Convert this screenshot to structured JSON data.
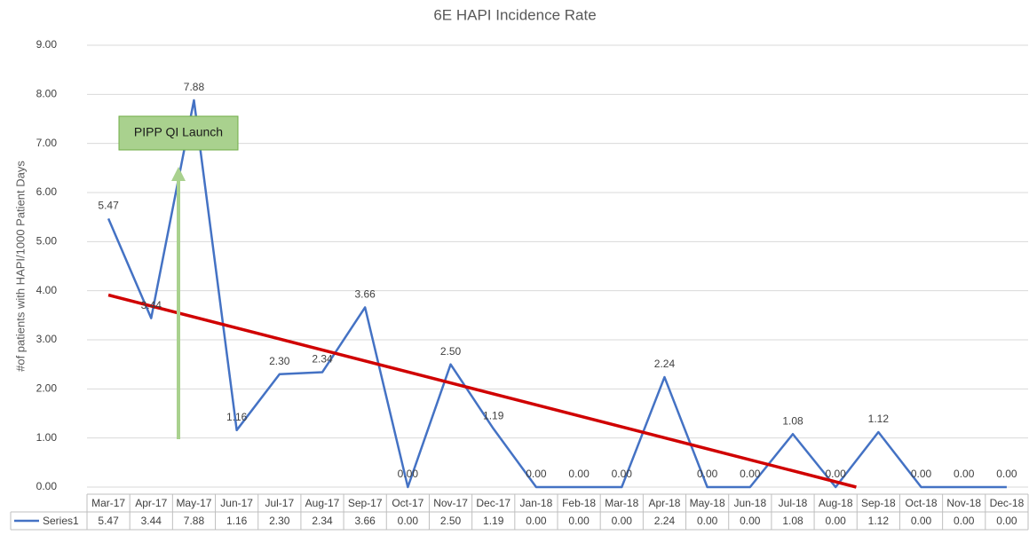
{
  "chart_data": {
    "type": "line",
    "title": "6E HAPI Incidence Rate",
    "y_label": "#of patients with HAPI/1000 Patient Days",
    "annotation": "PIPP QI Launch",
    "categories": [
      "Mar-17",
      "Apr-17",
      "May-17",
      "Jun-17",
      "Jul-17",
      "Aug-17",
      "Sep-17",
      "Oct-17",
      "Nov-17",
      "Dec-17",
      "Jan-18",
      "Feb-18",
      "Mar-18",
      "Apr-18",
      "May-18",
      "Jun-18",
      "Jul-18",
      "Aug-18",
      "Sep-18",
      "Oct-18",
      "Nov-18",
      "Dec-18"
    ],
    "series": [
      {
        "name": "Series1",
        "color": "#4472c4",
        "values": [
          5.47,
          3.44,
          7.88,
          1.16,
          2.3,
          2.34,
          3.66,
          0,
          2.5,
          1.19,
          0,
          0,
          0,
          2.24,
          0,
          0,
          1.08,
          0,
          1.12,
          0,
          0,
          0
        ],
        "value_labels": [
          "5.47",
          "3.44",
          "7.88",
          "1.16",
          "2.30",
          "2.34",
          "3.66",
          "0.00",
          "2.50",
          "1.19",
          "0.00",
          "0.00",
          "0.00",
          "2.24",
          "0.00",
          "0.00",
          "1.08",
          "0.00",
          "1.12",
          "0.00",
          "0.00",
          "0.00"
        ],
        "trendline": "linear",
        "trendline_color": "#d00000"
      }
    ],
    "ylim": [
      0,
      9
    ],
    "yticks": [
      {
        "value": 0,
        "label": "0.00"
      },
      {
        "value": 1,
        "label": "1.00"
      },
      {
        "value": 2,
        "label": "2.00"
      },
      {
        "value": 3,
        "label": "3.00"
      },
      {
        "value": 4,
        "label": "4.00"
      },
      {
        "value": 5,
        "label": "5.00"
      },
      {
        "value": 6,
        "label": "6.00"
      },
      {
        "value": 7,
        "label": "7.00"
      },
      {
        "value": 8,
        "label": "8.00"
      },
      {
        "value": 9,
        "label": "9.00"
      }
    ],
    "grid": true,
    "data_table": true
  }
}
